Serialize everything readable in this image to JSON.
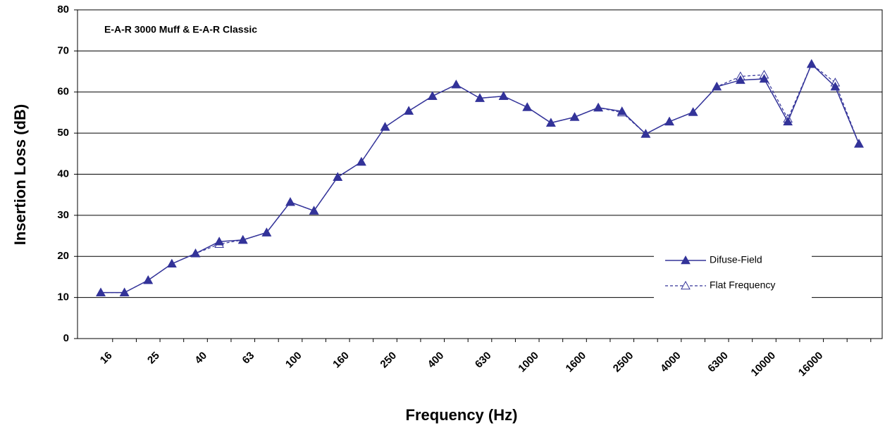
{
  "chart_data": {
    "type": "line",
    "title": "E-A-R 3000 Muff & E-A-R Classic",
    "x_label": "Frequency (Hz)",
    "y_label": "Insertion Loss (dB)",
    "categories": [
      "16",
      null,
      "25",
      null,
      "40",
      null,
      "63",
      null,
      "100",
      null,
      "160",
      null,
      "250",
      null,
      "400",
      null,
      "630",
      null,
      "1000",
      null,
      "1600",
      null,
      "2500",
      null,
      "4000",
      null,
      "6300",
      null,
      "10000",
      null,
      "16000",
      null,
      null
    ],
    "series": [
      {
        "name": "Difuse-Field",
        "color": "#333399",
        "values": [
          11.2,
          11.2,
          14.2,
          18.2,
          20.7,
          23.6,
          24.0,
          25.8,
          33.2,
          31.1,
          39.3,
          43.0,
          51.5,
          55.4,
          59.0,
          61.8,
          58.5,
          59.0,
          56.3,
          52.5,
          53.9,
          56.2,
          55.3,
          49.8,
          52.8,
          55.1,
          61.3,
          62.9,
          63.2,
          52.8,
          66.8,
          61.3,
          47.4
        ]
      },
      {
        "name": "Flat Frequency",
        "color": "#333399",
        "values": [
          11.2,
          11.2,
          14.2,
          18.2,
          20.7,
          23.0,
          24.0,
          25.8,
          33.2,
          31.1,
          39.3,
          43.0,
          51.5,
          55.4,
          59.0,
          61.8,
          58.5,
          59.0,
          56.3,
          52.5,
          53.9,
          56.2,
          55.0,
          49.8,
          52.8,
          55.1,
          61.3,
          63.8,
          64.2,
          53.5,
          66.8,
          62.3,
          47.4
        ]
      }
    ],
    "ylim": [
      0,
      80
    ],
    "yticks": [
      0,
      10,
      20,
      30,
      40,
      50,
      60,
      70,
      80
    ],
    "grid": true
  }
}
